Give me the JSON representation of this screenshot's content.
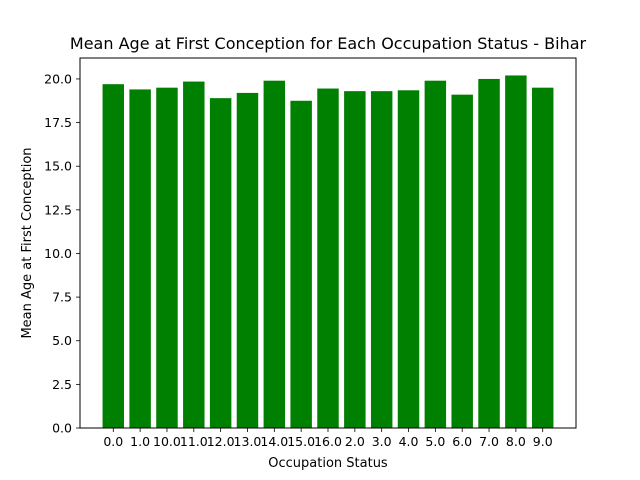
{
  "chart_data": {
    "type": "bar",
    "title": "Mean Age at First Conception for Each Occupation Status - Bihar",
    "xlabel": "Occupation Status",
    "ylabel": "Mean Age at First Conception",
    "categories": [
      "0.0",
      "1.0",
      "10.0",
      "11.0",
      "12.0",
      "13.0",
      "14.0",
      "15.0",
      "16.0",
      "2.0",
      "3.0",
      "4.0",
      "5.0",
      "6.0",
      "7.0",
      "8.0",
      "9.0"
    ],
    "values": [
      19.7,
      19.4,
      19.5,
      19.85,
      18.9,
      19.2,
      19.9,
      18.75,
      19.45,
      19.3,
      19.3,
      19.35,
      19.9,
      19.1,
      20.0,
      20.2,
      19.5
    ],
    "ylim": [
      0,
      21.2
    ],
    "yticks": [
      0.0,
      2.5,
      5.0,
      7.5,
      10.0,
      12.5,
      15.0,
      17.5,
      20.0
    ],
    "bar_color": "#008000",
    "grid": false,
    "legend": "none"
  }
}
